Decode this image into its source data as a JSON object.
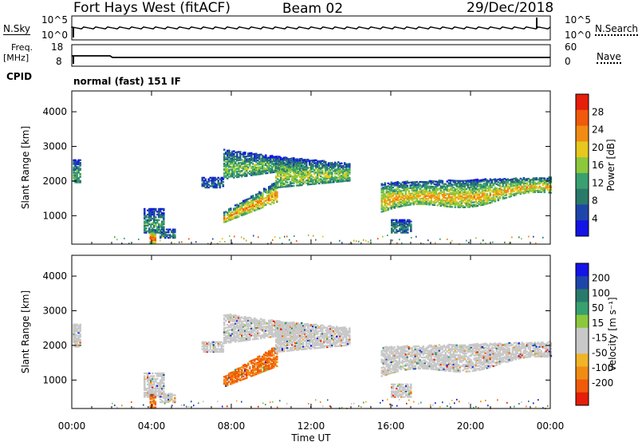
{
  "header": {
    "station": "Fort Hays West (fitACF)",
    "beam": "Beam 02",
    "date": "29/Dec/2018"
  },
  "panels": {
    "nsky": {
      "label": "N.Sky",
      "ticks": [
        "10^5",
        "10^0"
      ],
      "right_label": "N.Search",
      "right_ticks": [
        "10^5",
        "10^0"
      ]
    },
    "freq": {
      "label_top": "Freq.",
      "label_unit": "[MHz]",
      "ticks": [
        "18",
        "8"
      ],
      "right_label": "Nave",
      "right_ticks": [
        "60",
        "0"
      ]
    },
    "cpid": {
      "label": "CPID",
      "mode": "normal (fast) 151 IF"
    }
  },
  "colors": {
    "power": [
      "#1414e6",
      "#1e46aa",
      "#2a7a6a",
      "#3aa070",
      "#8cc83c",
      "#e6c81e",
      "#f08c14",
      "#f05a0a",
      "#e61e0a"
    ],
    "velocity": [
      "#e61e0a",
      "#f05a0a",
      "#f08c14",
      "#f0b428",
      "#c8c8c8",
      "#c8c8c8",
      "#8cc83c",
      "#3aa070",
      "#2a7a6a",
      "#1e46aa",
      "#1414e6"
    ]
  },
  "chart_data": [
    {
      "type": "heatmap",
      "name": "power",
      "ylabel": "Slant Range [km]",
      "ylim": [
        180,
        4600
      ],
      "yticks": [
        1000,
        2000,
        3000,
        4000
      ],
      "xticks_hours": [
        0,
        4,
        8,
        12,
        16,
        20,
        24
      ],
      "colorbar_label": "Power [dB]",
      "colorbar_ticks": [
        4,
        8,
        12,
        16,
        20,
        24,
        28
      ],
      "clim": [
        0,
        32
      ]
    },
    {
      "type": "heatmap",
      "name": "velocity",
      "ylabel": "Slant Range [km]",
      "ylim": [
        180,
        4600
      ],
      "yticks": [
        1000,
        2000,
        3000,
        4000
      ],
      "xticks_hours": [
        0,
        4,
        8,
        12,
        16,
        20,
        24
      ],
      "xtick_labels": [
        "00:00",
        "04:00",
        "08:00",
        "12:00",
        "16:00",
        "20:00",
        "00:00"
      ],
      "xlabel": "Time UT",
      "colorbar_label": "Velocity [m s⁻¹]",
      "colorbar_ticks": [
        -200,
        -100,
        -50,
        -15,
        15,
        50,
        100,
        200
      ],
      "colorbar_tick_labels": [
        "-200",
        "-100",
        "-50",
        "-15",
        "15",
        "50",
        "100",
        "200"
      ]
    }
  ]
}
